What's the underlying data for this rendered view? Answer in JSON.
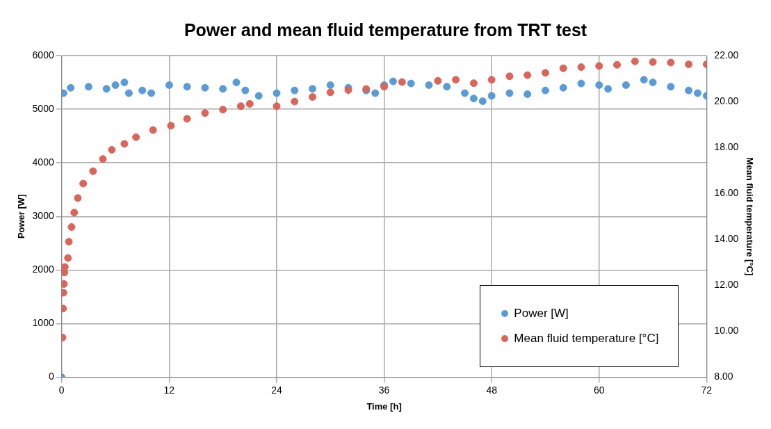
{
  "chart_data": {
    "type": "scatter",
    "title": "Power and mean fluid temperature from TRT test",
    "xlabel": "Time [h]",
    "ylabel": "Power [W]",
    "y2label": "Mean fluid temperature [°C]",
    "xlim": [
      0,
      72
    ],
    "xticks": [
      0,
      12,
      24,
      36,
      48,
      60,
      72
    ],
    "ylim": [
      0,
      6000
    ],
    "yticks": [
      0,
      1000,
      2000,
      3000,
      4000,
      5000,
      6000
    ],
    "y2lim": [
      8,
      22
    ],
    "y2ticks": [
      {
        "value": 8,
        "label": "8.00"
      },
      {
        "value": 10,
        "label": "10.00"
      },
      {
        "value": 12,
        "label": "12.00"
      },
      {
        "value": 14,
        "label": "14.00"
      },
      {
        "value": 16,
        "label": "16.00"
      },
      {
        "value": 18,
        "label": "18.00"
      },
      {
        "value": 20,
        "label": "20.00"
      },
      {
        "value": 22,
        "label": "22.00"
      }
    ],
    "grid": true,
    "legend": "bottom right",
    "marker": "circle",
    "series": [
      {
        "name": "Power [W]",
        "color": "#5b9bd5",
        "x": [
          0,
          0.2,
          1,
          3,
          5,
          6,
          7,
          7.5,
          9,
          10,
          12,
          14,
          16,
          18,
          19.5,
          20.5,
          22,
          24,
          26,
          28,
          30,
          32,
          34,
          35,
          36,
          37,
          39,
          41,
          43,
          45,
          46,
          47,
          48,
          50,
          52,
          54,
          56,
          58,
          60,
          61,
          63,
          65,
          66,
          68,
          70,
          71,
          72
        ],
        "values": [
          0,
          5300,
          5400,
          5420,
          5380,
          5450,
          5500,
          5300,
          5350,
          5300,
          5450,
          5420,
          5400,
          5380,
          5500,
          5350,
          5250,
          5300,
          5350,
          5380,
          5450,
          5400,
          5350,
          5300,
          5450,
          5520,
          5480,
          5450,
          5420,
          5300,
          5200,
          5150,
          5250,
          5300,
          5280,
          5350,
          5400,
          5480,
          5450,
          5380,
          5450,
          5550,
          5500,
          5420,
          5350,
          5300,
          5250
        ]
      },
      {
        "name": "Mean fluid temperature [°C]",
        "color": "#d9665b",
        "axis": "y2",
        "x": [
          0.1,
          0.15,
          0.2,
          0.25,
          0.3,
          0.35,
          0.7,
          0.8,
          1.1,
          1.4,
          1.8,
          2.4,
          3.5,
          4.6,
          5.6,
          7,
          8.3,
          10.2,
          12.2,
          14,
          16,
          18,
          20,
          21,
          24,
          26,
          28,
          30,
          32,
          34,
          36,
          38,
          42,
          44,
          46,
          48,
          50,
          52,
          54,
          56,
          58,
          60,
          62,
          64,
          66,
          68,
          70,
          72
        ],
        "values": [
          9.73,
          10.99,
          11.68,
          12.06,
          12.56,
          12.8,
          13.19,
          13.9,
          14.54,
          15.17,
          15.8,
          16.43,
          16.97,
          17.5,
          17.9,
          18.16,
          18.45,
          18.76,
          18.95,
          19.25,
          19.5,
          19.65,
          19.8,
          19.9,
          19.8,
          20.0,
          20.2,
          20.4,
          20.5,
          20.55,
          20.65,
          20.85,
          20.9,
          20.95,
          20.8,
          20.95,
          21.1,
          21.15,
          21.25,
          21.45,
          21.5,
          21.55,
          21.6,
          21.75,
          21.72,
          21.7,
          21.62,
          21.62
        ]
      }
    ]
  }
}
